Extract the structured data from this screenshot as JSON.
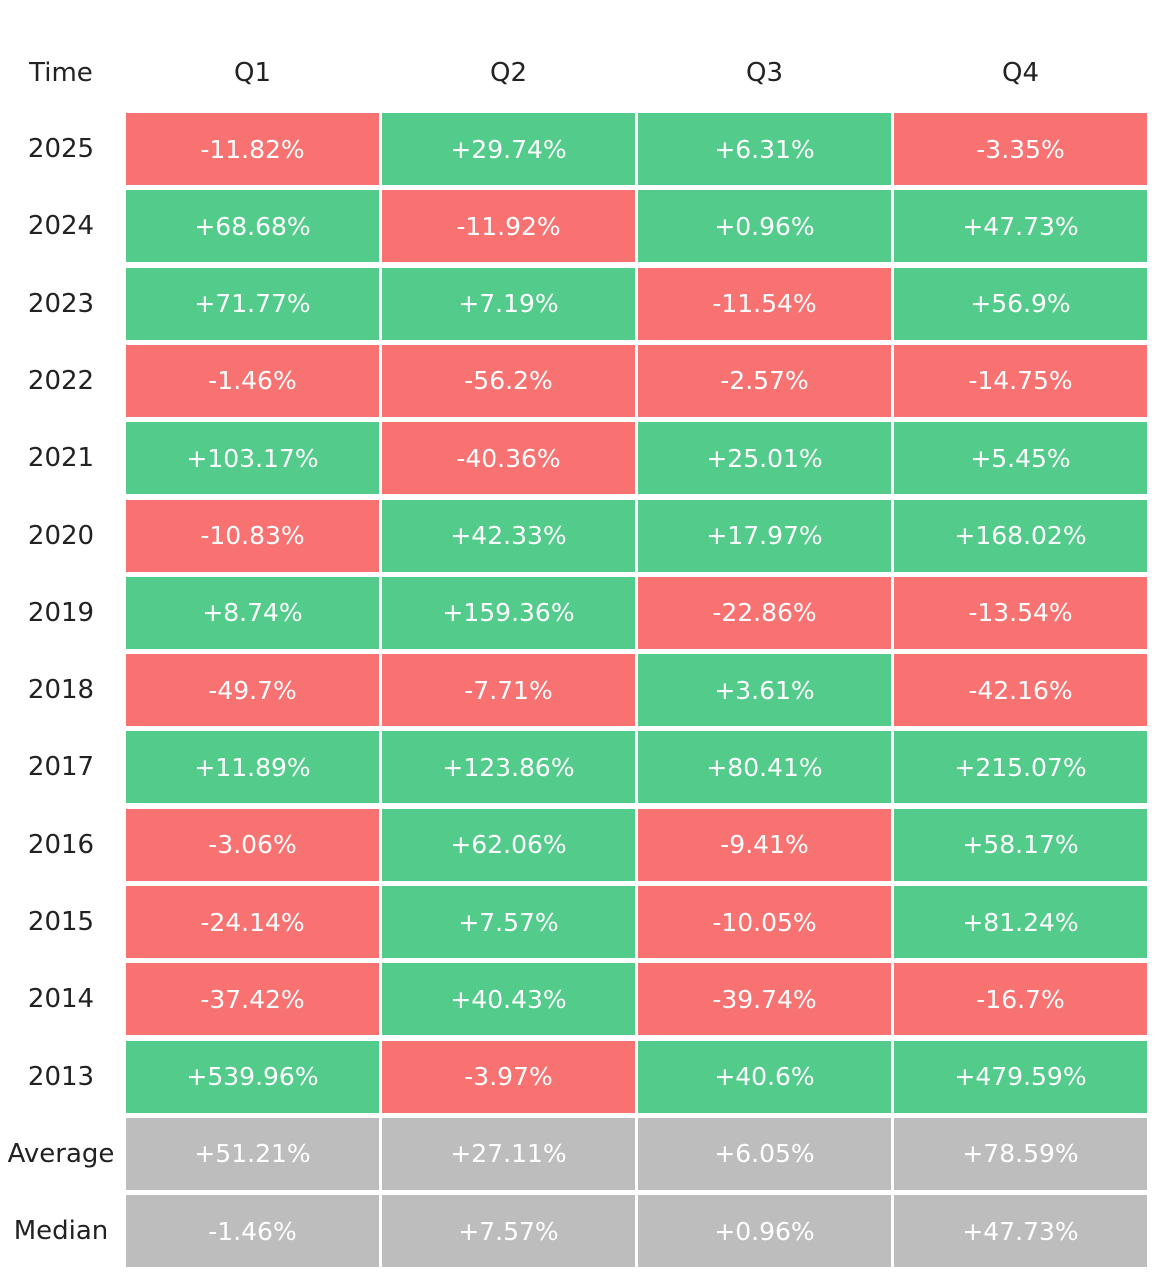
{
  "table": {
    "header": [
      "Time",
      "Q1",
      "Q2",
      "Q3",
      "Q4"
    ],
    "rows": [
      [
        "2025",
        "-11.82%",
        "+29.74%",
        "+6.31%",
        "-3.35%"
      ],
      [
        "2024",
        "+68.68%",
        "-11.92%",
        "+0.96%",
        "+47.73%"
      ],
      [
        "2023",
        "+71.77%",
        "+7.19%",
        "-11.54%",
        "+56.9%"
      ],
      [
        "2022",
        "-1.46%",
        "-56.2%",
        "-2.57%",
        "-14.75%"
      ],
      [
        "2021",
        "+103.17%",
        "-40.36%",
        "+25.01%",
        "+5.45%"
      ],
      [
        "2020",
        "-10.83%",
        "+42.33%",
        "+17.97%",
        "+168.02%"
      ],
      [
        "2019",
        "+8.74%",
        "+159.36%",
        "-22.86%",
        "-13.54%"
      ],
      [
        "2018",
        "-49.7%",
        "-7.71%",
        "+3.61%",
        "-42.16%"
      ],
      [
        "2017",
        "+11.89%",
        "+123.86%",
        "+80.41%",
        "+215.07%"
      ],
      [
        "2016",
        "-3.06%",
        "+62.06%",
        "-9.41%",
        "+58.17%"
      ],
      [
        "2015",
        "-24.14%",
        "+7.57%",
        "-10.05%",
        "+81.24%"
      ],
      [
        "2014",
        "-37.42%",
        "+40.43%",
        "-39.74%",
        "-16.7%"
      ],
      [
        "2013",
        "+539.96%",
        "-3.97%",
        "+40.6%",
        "+479.59%"
      ]
    ],
    "summary_rows": [
      [
        "Average",
        "+51.21%",
        "+27.11%",
        "+6.05%",
        "+78.59%"
      ],
      [
        "Median",
        "-1.46%",
        "+7.57%",
        "+0.96%",
        "+47.73%"
      ]
    ],
    "up_color": "#52cb8b",
    "down_color": "#f87272",
    "summary_color": "#bdbdbd"
  }
}
